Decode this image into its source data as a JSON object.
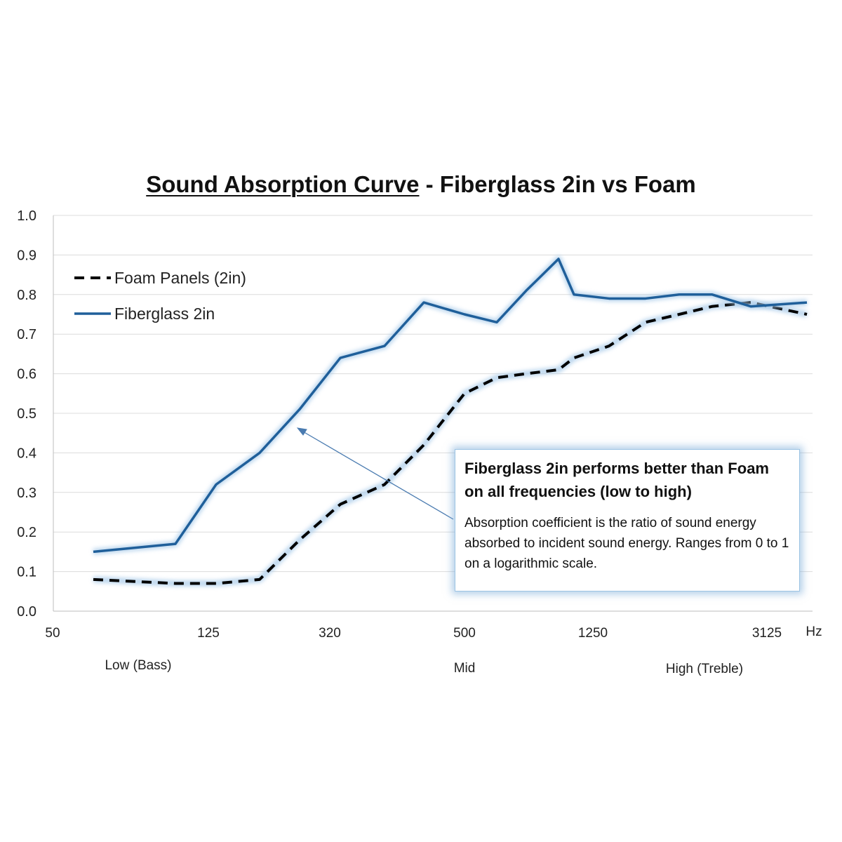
{
  "chart_data": {
    "type": "line",
    "title_emphasis": "Sound Absorption Curve",
    "title_rest": " - Fiberglass 2in vs Foam",
    "ylim": [
      0,
      1.0
    ],
    "y_ticks": [
      "0.0",
      "0.1",
      "0.2",
      "0.3",
      "0.4",
      "0.5",
      "0.6",
      "0.7",
      "0.8",
      "0.9",
      "1.0"
    ],
    "x_ticks": [
      "50",
      "125",
      "320",
      "500",
      "1250",
      "3125"
    ],
    "x_unit": "Hz",
    "x_range_labels": [
      "Low (Bass)",
      "Mid",
      "High (Treble)"
    ],
    "grid": true,
    "legend_position": "top-left",
    "series": [
      {
        "name": "Foam Panels (2in)",
        "style": "dashed",
        "color": "#000000",
        "values": [
          0.08,
          0.07,
          0.07,
          0.08,
          0.18,
          0.27,
          0.32,
          0.42,
          0.55,
          0.59,
          0.6,
          0.61,
          0.64,
          0.67,
          0.73,
          0.75,
          0.77,
          0.78,
          0.75
        ]
      },
      {
        "name": "Fiberglass 2in",
        "style": "solid",
        "color": "#1f5f9a",
        "values": [
          0.15,
          0.17,
          0.32,
          0.4,
          0.51,
          0.64,
          0.67,
          0.78,
          0.75,
          0.73,
          0.81,
          0.89,
          0.8,
          0.79,
          0.79,
          0.8,
          0.8,
          0.77,
          0.78
        ]
      }
    ],
    "annotation": {
      "heading": "Fiberglass 2in performs better than Foam on all frequencies (low to high)",
      "body": "Absorption coefficient is the ratio of sound energy absorbed to incident sound energy. Ranges from 0 to 1 on a logarithmic scale."
    }
  }
}
